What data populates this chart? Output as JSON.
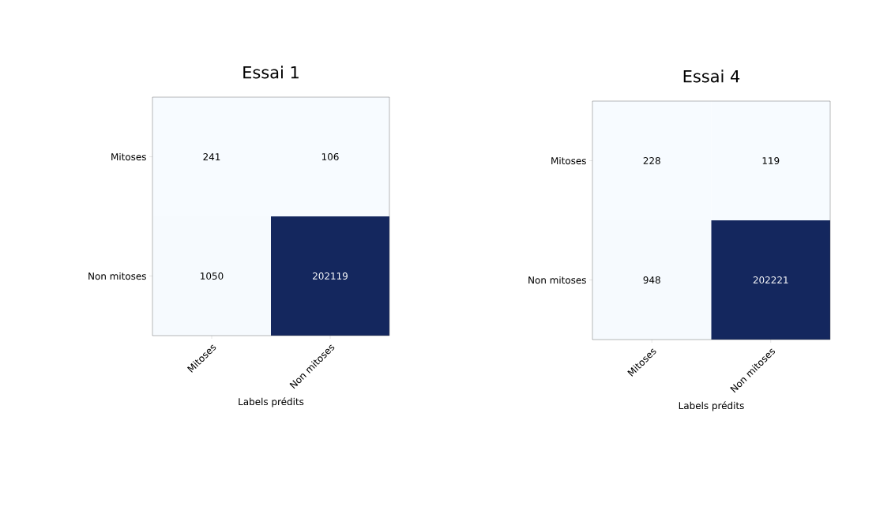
{
  "chart_data": [
    {
      "type": "heatmap",
      "title": "Essai 1",
      "xlabel": "Labels prédits",
      "categories": [
        "Mitoses",
        "Non mitoses"
      ],
      "y_categories": [
        "Mitoses",
        "Non mitoses"
      ],
      "cells": [
        [
          241,
          106
        ],
        [
          1050,
          202119
        ]
      ],
      "data_labels": true
    },
    {
      "type": "heatmap",
      "title": "Essai 4",
      "xlabel": "Labels prédits",
      "categories": [
        "Mitoses",
        "Non mitoses"
      ],
      "y_categories": [
        "Mitoses",
        "Non mitoses"
      ],
      "cells": [
        [
          228,
          119
        ],
        [
          948,
          202221
        ]
      ],
      "data_labels": true
    }
  ]
}
